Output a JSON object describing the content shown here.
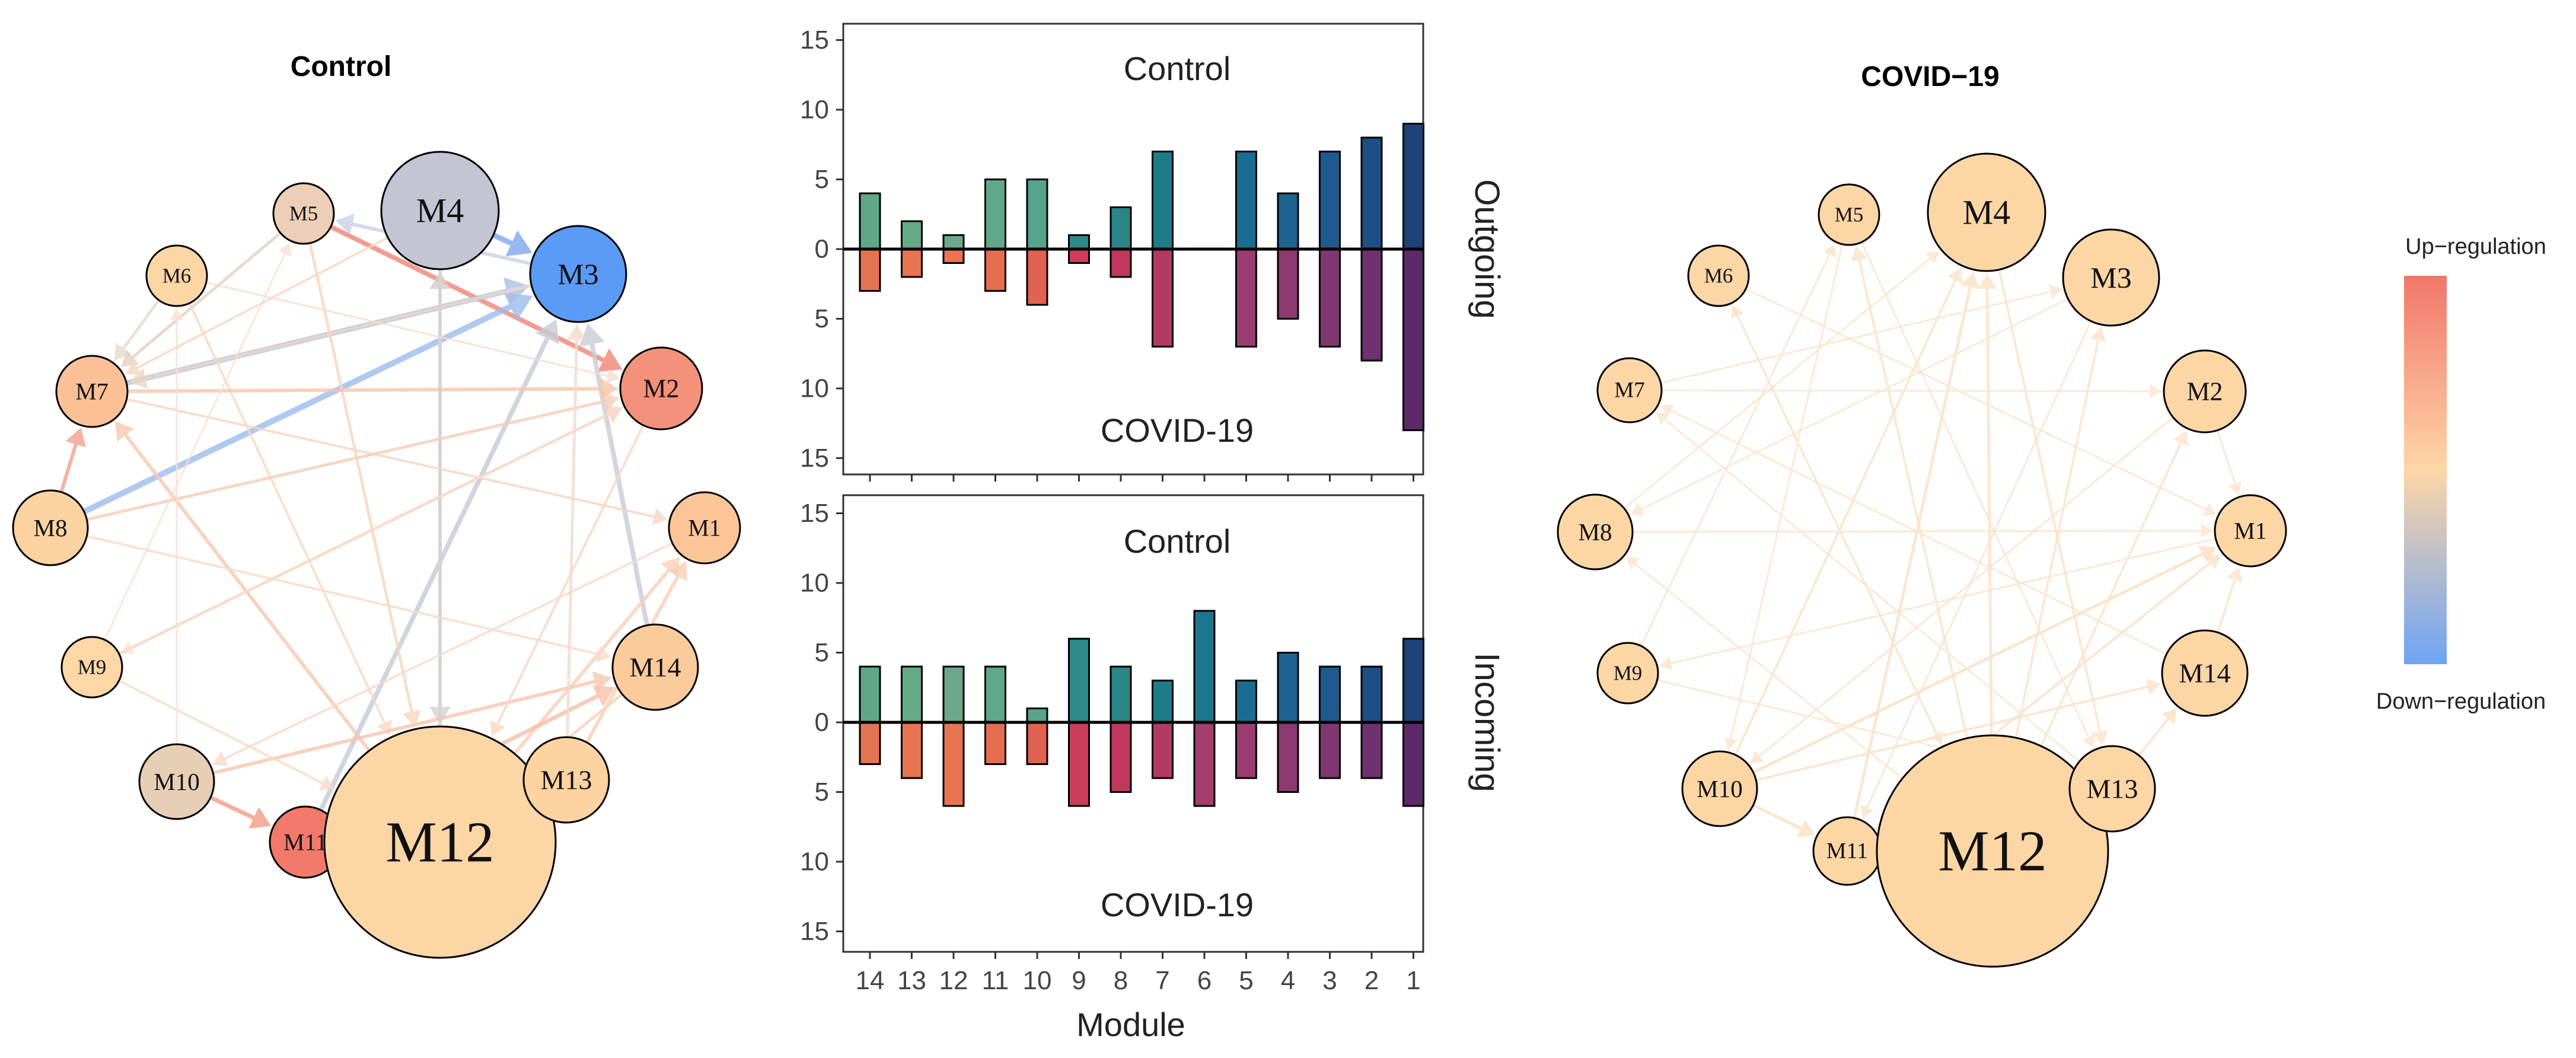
{
  "colors": {
    "up": "#F26E5E",
    "neutral": "#FDD9A8",
    "down": "#5B9BF8",
    "node_stroke": "#000000",
    "bar_palette": [
      "#5FA787",
      "#E3714F",
      "#E3714F",
      "#E3714F",
      "#E3714F",
      "#C73E5A",
      "#B83D62",
      "#1F7B86",
      "#A33E71",
      "#1A6C8F",
      "#1E5C8F",
      "#1E4E86",
      "#1D447A",
      "#5B266B"
    ]
  },
  "networks": [
    {
      "id": "control",
      "title": "Control",
      "nodes": [
        {
          "label": "M1",
          "size": 1,
          "color": "#FCC597"
        },
        {
          "label": "M2",
          "size": 1.15,
          "color": "#F4917A"
        },
        {
          "label": "M3",
          "size": 1.35,
          "color": "#5B9BF8"
        },
        {
          "label": "M4",
          "size": 1.65,
          "color": "#C3C5D3"
        },
        {
          "label": "M5",
          "size": 0.85,
          "color": "#ECCFB6"
        },
        {
          "label": "M6",
          "size": 0.85,
          "color": "#FDD6A6"
        },
        {
          "label": "M7",
          "size": 1,
          "color": "#FBC096"
        },
        {
          "label": "M8",
          "size": 1.05,
          "color": "#FDD3A1"
        },
        {
          "label": "M9",
          "size": 0.85,
          "color": "#FDD8A6"
        },
        {
          "label": "M10",
          "size": 1.05,
          "color": "#E7CFB6"
        },
        {
          "label": "M11",
          "size": 1,
          "color": "#F3796A"
        },
        {
          "label": "M12",
          "size": 3.25,
          "color": "#FDD6A6"
        },
        {
          "label": "M13",
          "size": 1.2,
          "color": "#FDD3A1"
        },
        {
          "label": "M14",
          "size": 1.2,
          "color": "#FCCB9B"
        }
      ],
      "edges": [
        [
          "M5",
          "M2",
          "#F28474",
          8
        ],
        [
          "M4",
          "M3",
          "#7FA7F0",
          9
        ],
        [
          "M8",
          "M3",
          "#9DBCEE",
          10
        ],
        [
          "M7",
          "M3",
          "#A9C1E4",
          9
        ],
        [
          "M3",
          "M7",
          "#ECD8C6",
          6
        ],
        [
          "M11",
          "M3",
          "#C5CBD8",
          8
        ],
        [
          "M14",
          "M3",
          "#C9CDD8",
          8
        ],
        [
          "M12",
          "M4",
          "#D8D0CC",
          6
        ],
        [
          "M10",
          "M11",
          "#F49A87",
          7
        ],
        [
          "M8",
          "M7",
          "#F4A08D",
          6
        ],
        [
          "M6",
          "M7",
          "#E8DACB",
          5
        ],
        [
          "M5",
          "M7",
          "#E2D2C4",
          5
        ],
        [
          "M3",
          "M5",
          "#C9D2E6",
          6
        ],
        [
          "M4",
          "M12",
          "#D6D3D3",
          6
        ],
        [
          "M5",
          "M12",
          "#F8D7BE",
          5
        ],
        [
          "M6",
          "M12",
          "#F8D9C3",
          4
        ],
        [
          "M12",
          "M7",
          "#F8C9B0",
          6
        ],
        [
          "M12",
          "M1",
          "#F9D0B8",
          6
        ],
        [
          "M13",
          "M1",
          "#F9CFB6",
          6
        ],
        [
          "M11",
          "M14",
          "#F6C0A8",
          7
        ],
        [
          "M10",
          "M14",
          "#F7C8B0",
          6
        ],
        [
          "M9",
          "M2",
          "#F8D2BC",
          5
        ],
        [
          "M8",
          "M2",
          "#F8CEB5",
          5
        ],
        [
          "M7",
          "M2",
          "#F7C6AC",
          6
        ],
        [
          "M7",
          "M1",
          "#F8D5C1",
          4
        ],
        [
          "M9",
          "M12",
          "#F9DBC7",
          4
        ],
        [
          "M9",
          "M5",
          "#F9E2D2",
          3
        ],
        [
          "M10",
          "M6",
          "#F9E0D0",
          3
        ],
        [
          "M8",
          "M14",
          "#F9DCC8",
          4
        ],
        [
          "M2",
          "M12",
          "#F9D7C2",
          4
        ],
        [
          "M1",
          "M10",
          "#F9DCCA",
          4
        ],
        [
          "M14",
          "M12",
          "#F8D2BC",
          5
        ],
        [
          "M13",
          "M3",
          "#F2DCCB",
          5
        ],
        [
          "M4",
          "M7",
          "#F6D8C4",
          4
        ],
        [
          "M2",
          "M9",
          "#F9E0D0",
          3
        ],
        [
          "M6",
          "M2",
          "#F9DDCB",
          3
        ]
      ]
    },
    {
      "id": "covid",
      "title": "COVID−19",
      "nodes": [
        {
          "label": "M1",
          "size": 1,
          "color": "#FDD6A6"
        },
        {
          "label": "M2",
          "size": 1.15,
          "color": "#FDD6A6"
        },
        {
          "label": "M3",
          "size": 1.35,
          "color": "#FDD6A6"
        },
        {
          "label": "M4",
          "size": 1.65,
          "color": "#FDD6A6"
        },
        {
          "label": "M5",
          "size": 0.85,
          "color": "#FDD6A6"
        },
        {
          "label": "M6",
          "size": 0.85,
          "color": "#FDD6A6"
        },
        {
          "label": "M7",
          "size": 0.9,
          "color": "#FDD6A6"
        },
        {
          "label": "M8",
          "size": 1.05,
          "color": "#FDD6A6"
        },
        {
          "label": "M9",
          "size": 0.85,
          "color": "#FDD6A6"
        },
        {
          "label": "M10",
          "size": 1.05,
          "color": "#FDD6A6"
        },
        {
          "label": "M11",
          "size": 0.95,
          "color": "#FDD6A6"
        },
        {
          "label": "M12",
          "size": 3.25,
          "color": "#FDD6A6"
        },
        {
          "label": "M13",
          "size": 1.2,
          "color": "#FDD6A6"
        },
        {
          "label": "M14",
          "size": 1.2,
          "color": "#FDD6A6"
        }
      ],
      "edges": [
        [
          "M12",
          "M4",
          "#FCE2C6",
          5
        ],
        [
          "M11",
          "M4",
          "#FCE2C6",
          5
        ],
        [
          "M10",
          "M4",
          "#FCE3C9",
          4
        ],
        [
          "M10",
          "M1",
          "#FCE0C3",
          5
        ],
        [
          "M11",
          "M1",
          "#FCE2C6",
          4
        ],
        [
          "M10",
          "M14",
          "#FCE2C6",
          4
        ],
        [
          "M12",
          "M3",
          "#FCE3C9",
          4
        ],
        [
          "M12",
          "M2",
          "#FCE4CB",
          4
        ],
        [
          "M12",
          "M5",
          "#FCE3C9",
          4
        ],
        [
          "M12",
          "M6",
          "#FCE4CB",
          3
        ],
        [
          "M12",
          "M8",
          "#FCE5CD",
          3
        ],
        [
          "M9",
          "M5",
          "#FCE4CB",
          3
        ],
        [
          "M8",
          "M1",
          "#FCE4CB",
          3
        ],
        [
          "M7",
          "M2",
          "#FCE5CD",
          3
        ],
        [
          "M7",
          "M3",
          "#FCE5CD",
          3
        ],
        [
          "M6",
          "M1",
          "#FCE5CD",
          3
        ],
        [
          "M5",
          "M13",
          "#FCE5CD",
          3
        ],
        [
          "M4",
          "M13",
          "#FCE3C9",
          4
        ],
        [
          "M3",
          "M11",
          "#FCE4CB",
          3
        ],
        [
          "M2",
          "M10",
          "#FCE4CB",
          3
        ],
        [
          "M1",
          "M9",
          "#FCE5CD",
          3
        ],
        [
          "M14",
          "M7",
          "#FCE5CD",
          3
        ],
        [
          "M13",
          "M7",
          "#FCE6CF",
          3
        ],
        [
          "M8",
          "M4",
          "#FCE5CD",
          3
        ],
        [
          "M6",
          "M12",
          "#FCE4CB",
          3
        ],
        [
          "M5",
          "M10",
          "#FCE5CD",
          3
        ],
        [
          "M9",
          "M13",
          "#FCE6CF",
          3
        ],
        [
          "M3",
          "M8",
          "#FCE6CF",
          3
        ],
        [
          "M10",
          "M11",
          "#FCE0C3",
          5
        ],
        [
          "M13",
          "M14",
          "#FCE2C6",
          4
        ],
        [
          "M14",
          "M1",
          "#FCE3C9",
          4
        ],
        [
          "M2",
          "M1",
          "#FCE4CB",
          3
        ]
      ]
    }
  ],
  "chart_data": [
    {
      "type": "bar",
      "facet": "Outgoing",
      "top_label": "Control",
      "bottom_label": "COVID-19",
      "categories": [
        "14",
        "13",
        "12",
        "11",
        "10",
        "9",
        "8",
        "7",
        "6",
        "5",
        "4",
        "3",
        "2",
        "1"
      ],
      "series": [
        {
          "name": "Control",
          "values": [
            4,
            2,
            1,
            5,
            5,
            1,
            3,
            7,
            0,
            7,
            4,
            7,
            8,
            9
          ]
        },
        {
          "name": "COVID-19",
          "values": [
            3,
            2,
            1,
            3,
            4,
            1,
            2,
            7,
            0,
            7,
            5,
            7,
            8,
            13
          ]
        }
      ],
      "ylim": [
        -16,
        16
      ],
      "yticks": [
        "15",
        "10",
        "5",
        "0",
        "5",
        "10",
        "15"
      ],
      "xlabel": "Module"
    },
    {
      "type": "bar",
      "facet": "Incoming",
      "top_label": "Control",
      "bottom_label": "COVID-19",
      "categories": [
        "14",
        "13",
        "12",
        "11",
        "10",
        "9",
        "8",
        "7",
        "6",
        "5",
        "4",
        "3",
        "2",
        "1"
      ],
      "series": [
        {
          "name": "Control",
          "values": [
            4,
            4,
            4,
            4,
            1,
            6,
            4,
            3,
            8,
            3,
            5,
            4,
            4,
            6
          ]
        },
        {
          "name": "COVID-19",
          "values": [
            3,
            4,
            6,
            3,
            3,
            6,
            5,
            4,
            6,
            4,
            5,
            4,
            4,
            6
          ]
        }
      ],
      "ylim": [
        -16,
        16
      ],
      "yticks": [
        "15",
        "10",
        "5",
        "0",
        "5",
        "10",
        "15"
      ],
      "xlabel": "Module"
    }
  ],
  "legend": {
    "top": "Up−regulation",
    "bottom": "Down−regulation"
  }
}
